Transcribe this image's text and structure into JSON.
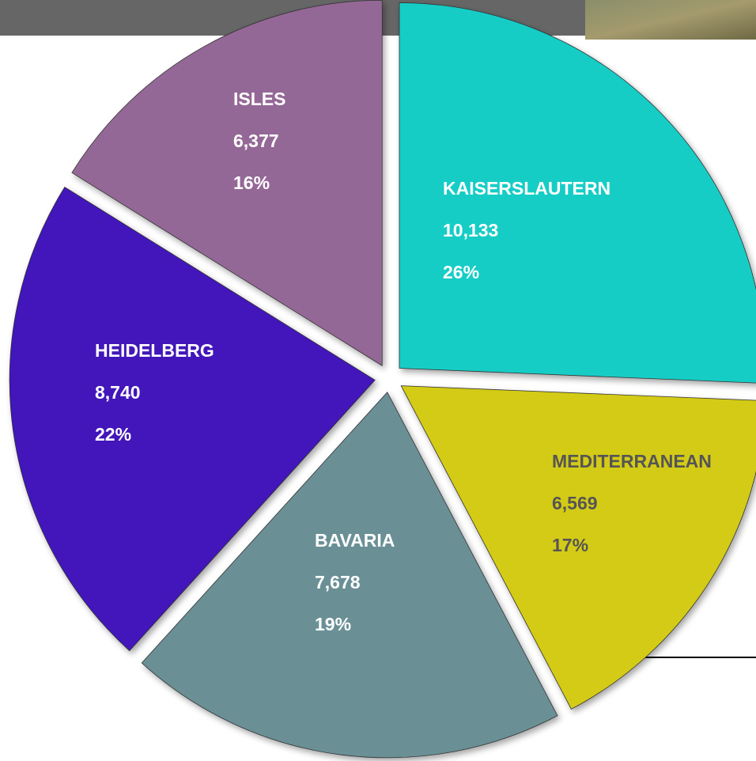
{
  "chart_data": {
    "type": "pie",
    "categories": [
      "KAISERSLAUTERN",
      "MEDITERRANEAN",
      "BAVARIA",
      "HEIDELBERG",
      "ISLES"
    ],
    "values": [
      10133,
      6569,
      7678,
      8740,
      6377
    ],
    "value_labels": [
      "10,133",
      "6,569",
      "7,678",
      "8,740",
      "6,377"
    ],
    "percent_labels": [
      "26%",
      "17%",
      "19%",
      "22%",
      "16%"
    ],
    "colors": [
      "#12cdc6",
      "#d4cb18",
      "#6a9096",
      "#4314ba",
      "#946896"
    ],
    "label_colors": [
      "#ffffff",
      "#555555",
      "#ffffff",
      "#ffffff",
      "#ffffff"
    ]
  }
}
